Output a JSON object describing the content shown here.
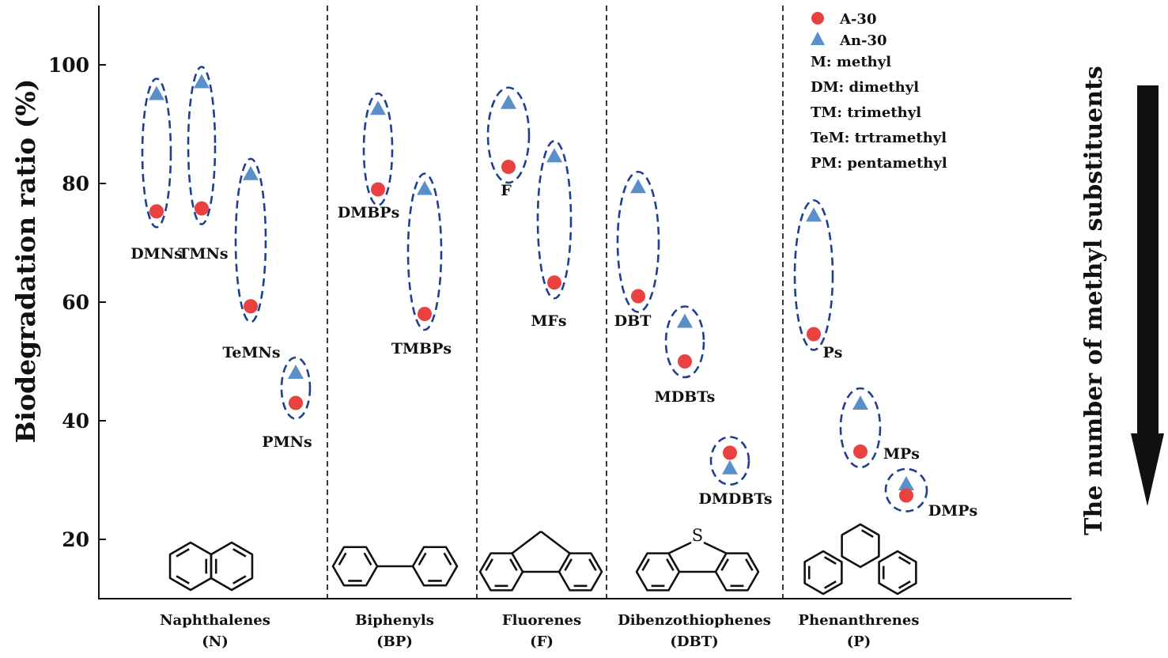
{
  "chart_data": {
    "type": "scatter",
    "ylabel": "Biodegradation ratio (%)",
    "side_label": "The number of methyl substituents",
    "ylim": [
      13,
      109
    ],
    "yticks": [
      20,
      40,
      60,
      80,
      100
    ],
    "series": [
      {
        "name": "A-30",
        "marker": "circle",
        "color": "#e8413f"
      },
      {
        "name": "An-30",
        "marker": "triangle",
        "color": "#5b8fc9"
      }
    ],
    "legend_abbreviations": [
      "M: methyl",
      "DM: dimethyl",
      "TM: trimethyl",
      "TeM: trtramethyl",
      "PM: pentamethyl"
    ],
    "groups": [
      {
        "name": "Naphthalenes",
        "abbr": "(N)",
        "structure": "naphthalene",
        "compounds": [
          {
            "label": "DMNs",
            "A30": 75.3,
            "An30": 95.0
          },
          {
            "label": "TMNs",
            "A30": 75.8,
            "An30": 97.0
          },
          {
            "label": "TeMNs",
            "A30": 59.3,
            "An30": 81.5
          },
          {
            "label": "PMNs",
            "A30": 43.0,
            "An30": 48.0
          }
        ]
      },
      {
        "name": "Biphenyls",
        "abbr": "(BP)",
        "structure": "biphenyl",
        "compounds": [
          {
            "label": "DMBPs",
            "A30": 79.0,
            "An30": 92.5
          },
          {
            "label": "TMBPs",
            "A30": 58.0,
            "An30": 79.0
          }
        ]
      },
      {
        "name": "Fluorenes",
        "abbr": "(F)",
        "structure": "fluorene",
        "compounds": [
          {
            "label": "F",
            "A30": 82.8,
            "An30": 93.5
          },
          {
            "label": "MFs",
            "A30": 63.3,
            "An30": 84.5
          }
        ]
      },
      {
        "name": "Dibenzothiophenes",
        "abbr": "(DBT)",
        "structure": "dibenzothiophene",
        "compounds": [
          {
            "label": "DBT",
            "A30": 61.0,
            "An30": 79.3
          },
          {
            "label": "MDBTs",
            "A30": 50.0,
            "An30": 56.6
          },
          {
            "label": "DMDBTs",
            "A30": 34.6,
            "An30": 31.9
          }
        ]
      },
      {
        "name": "Phenanthrenes",
        "abbr": "(P)",
        "structure": "phenanthrene",
        "compounds": [
          {
            "label": "Ps",
            "A30": 54.6,
            "An30": 74.5
          },
          {
            "label": "MPs",
            "A30": 34.8,
            "An30": 42.8
          },
          {
            "label": "DMPs",
            "A30": 27.4,
            "An30": 29.2
          }
        ]
      }
    ]
  },
  "structure_labels": {
    "sulfur_atom": "S"
  }
}
